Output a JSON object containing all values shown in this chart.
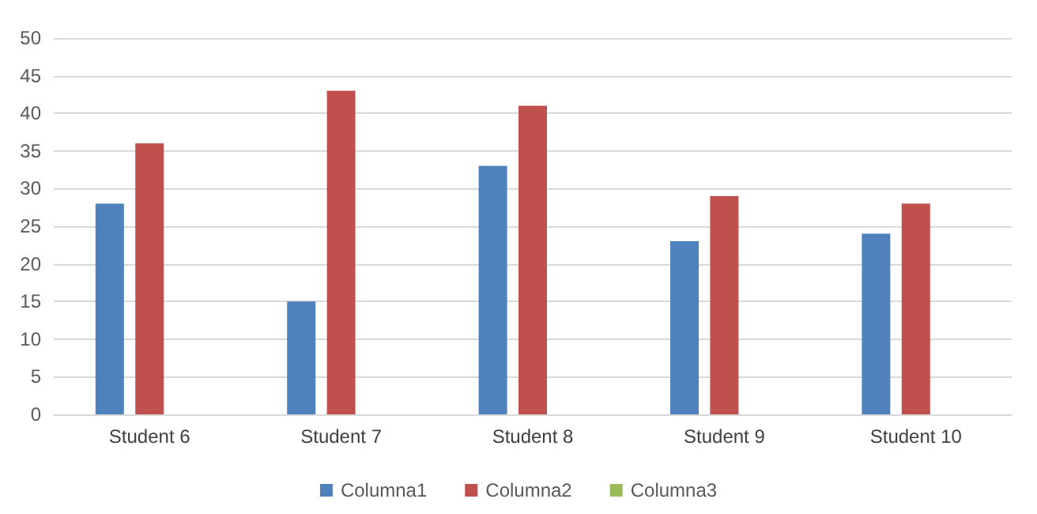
{
  "chart_data": {
    "type": "bar",
    "categories": [
      "Student 6",
      "Student 7",
      "Student 8",
      "Student 9",
      "Student 10"
    ],
    "series": [
      {
        "name": "Columna1",
        "color": "#4f81bd",
        "values": [
          28,
          15,
          33,
          23,
          24
        ]
      },
      {
        "name": "Columna2",
        "color": "#c0504d",
        "values": [
          36,
          43,
          41,
          29,
          28
        ]
      },
      {
        "name": "Columna3",
        "color": "#9bbb59",
        "values": [
          null,
          null,
          null,
          null,
          null
        ]
      }
    ],
    "ylim": [
      0,
      50
    ],
    "yticks": [
      0,
      5,
      10,
      15,
      20,
      25,
      30,
      35,
      40,
      45,
      50
    ],
    "grid": "y",
    "legend": "bottom"
  }
}
